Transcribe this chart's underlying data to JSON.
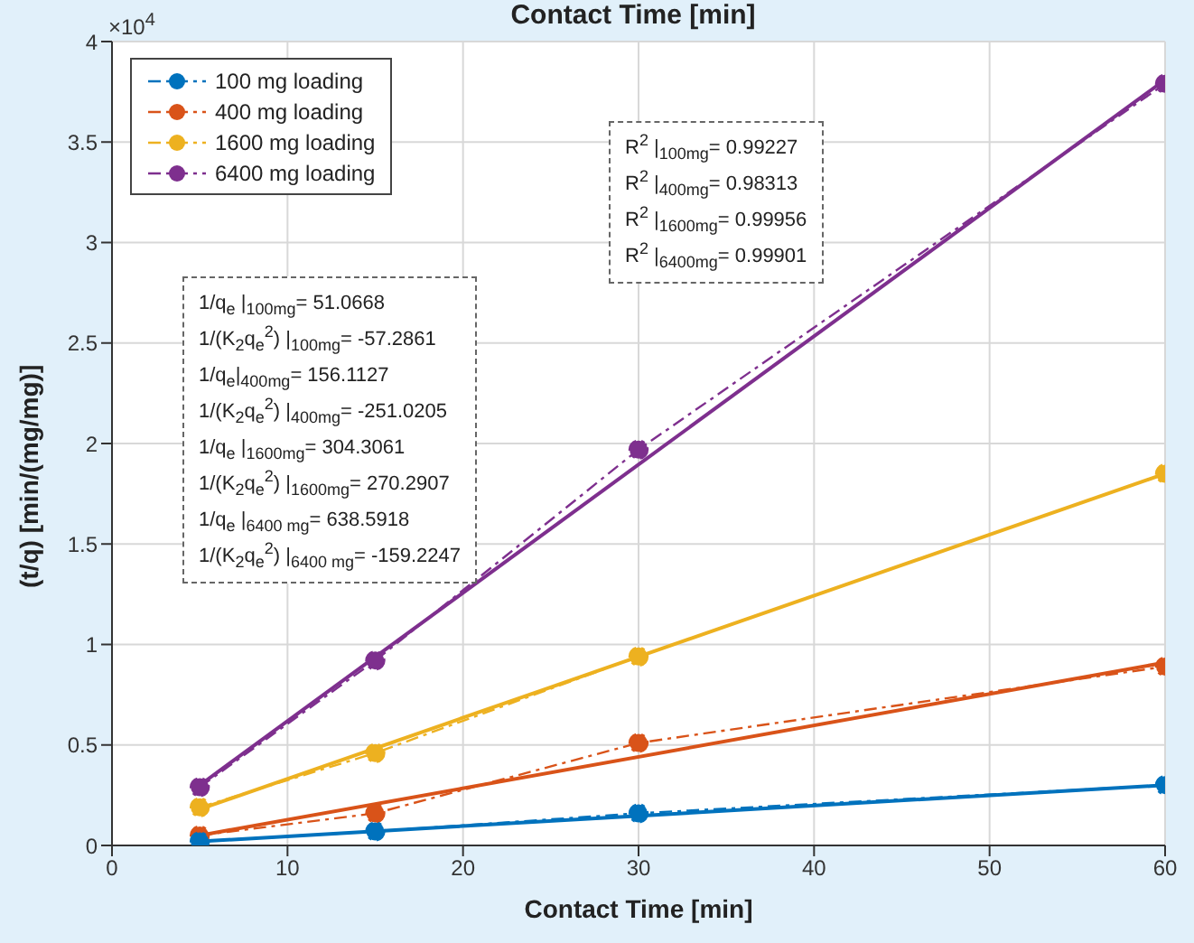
{
  "chart_data": {
    "type": "line",
    "title": "Contact Time [min]",
    "xlabel": "Contact Time [min]",
    "ylabel": "(t/q) [min/(mg/mg)]",
    "xlim": [
      0,
      60
    ],
    "xticks": [
      0,
      10,
      20,
      30,
      40,
      50,
      60
    ],
    "ylim": [
      0,
      4
    ],
    "yticks": [
      0,
      0.5,
      1,
      1.5,
      2,
      2.5,
      3,
      3.5,
      4
    ],
    "grid": true,
    "legend": "top left",
    "series": [
      {
        "name": "100 mg loading",
        "color": "#0072bd",
        "x": [
          5,
          15,
          30,
          60
        ],
        "values": [
          0.02,
          0.07,
          0.16,
          0.3
        ],
        "marker": "circle",
        "line_style": "dashed"
      },
      {
        "name": "400 mg loading",
        "color": "#d95319",
        "x": [
          5,
          15,
          30,
          60
        ],
        "values": [
          0.05,
          0.16,
          0.51,
          0.89
        ],
        "marker": "circle",
        "line_style": "dashed"
      },
      {
        "name": "1600 mg loading",
        "color": "#edb120",
        "x": [
          5,
          15,
          30,
          60
        ],
        "values": [
          0.19,
          0.46,
          0.94,
          1.85
        ],
        "marker": "circle",
        "line_style": "dashed"
      },
      {
        "name": "6400 mg loading",
        "color": "#7e2f8e",
        "x": [
          5,
          15,
          30,
          60
        ],
        "values": [
          0.29,
          0.92,
          1.97,
          3.79
        ],
        "marker": "circle",
        "line_style": "dashed"
      },
      {
        "color": "#0072bd",
        "x": [
          5,
          60
        ],
        "values": [
          0.02,
          0.3
        ],
        "marker": "none",
        "line_style": "solid"
      },
      {
        "color": "#d95319",
        "x": [
          5,
          60
        ],
        "values": [
          0.05,
          0.91
        ],
        "marker": "none",
        "line_style": "solid"
      },
      {
        "color": "#edb120",
        "x": [
          5,
          60
        ],
        "values": [
          0.18,
          1.85
        ],
        "marker": "none",
        "line_style": "solid"
      },
      {
        "color": "#7e2f8e",
        "x": [
          5,
          60
        ],
        "values": [
          0.3,
          3.81
        ],
        "marker": "none",
        "line_style": "solid"
      }
    ],
    "annotations": [
      "×10$^{4}$",
      "R$^{2}$ |$_{100mg}$= 0.99227",
      "R$^{2}$ |$_{400mg}$= 0.98313",
      "R$^{2}$ |$_{1600mg}$= 0.99956",
      "R$^{2}$ |$_{6400mg}$= 0.99901",
      "1/q$_{e}$ |$_{100mg}$= 51.0668",
      "1/(K$_{2}$q$_{e}$$^{2}$) |$_{100mg}$= -57.2861",
      "1/q$_{e}$|$_{400mg}$= 156.1127",
      "1/(K$_{2}$q$_{e}$$^{2}$) |$_{400mg}$= -251.0205",
      "1/q$_{e}$ |$_{1600mg}$= 304.3061",
      "1/(K$_{2}$q$_{e}$$^{2}$) |$_{1600mg}$= 270.2907",
      "1/q$_{e}$ |$_{6400 mg}$= 638.5918",
      "1/(K$_{2}$q$_{e}$$^{2}$) |$_{6400 mg}$= -159.2247"
    ]
  }
}
